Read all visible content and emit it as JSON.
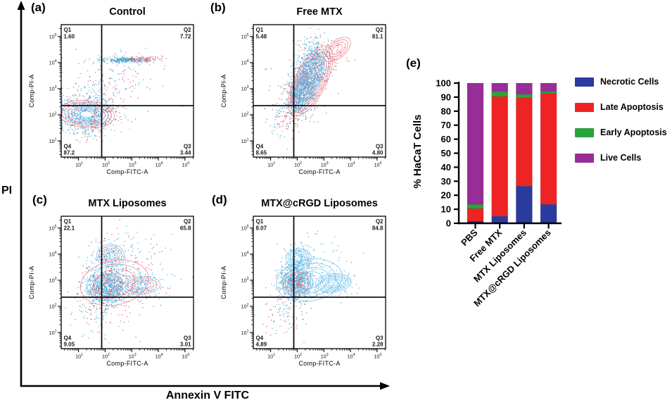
{
  "figure": {
    "pi_axis_label": "PI",
    "fitc_axis_label": "Annexin V FITC"
  },
  "panel_labels": [
    "(a)",
    "(b)",
    "(c)",
    "(d)",
    "(e)"
  ],
  "colors": {
    "scatter_blue": "#35a3dc",
    "scatter_red": "#e23b44",
    "contour_blue": "#6cc0e8",
    "contour_red": "#e87a87"
  },
  "chart_data": [
    {
      "type": "scatter",
      "panel": "(a)",
      "title": "Control",
      "axis": {
        "xlabel": "Comp-FITC-A",
        "ylabel": "Comp-PI-A",
        "xlog_range": [
          0.35,
          5.32
        ],
        "ylog_range": [
          0.38,
          5.45
        ],
        "decades": [
          1,
          2,
          3,
          4,
          5
        ]
      },
      "gate": {
        "x": 1.87,
        "y": 2.35
      },
      "quadrants": [
        {
          "id": "Q1",
          "value": "1.60",
          "pos": "tl"
        },
        {
          "id": "Q2",
          "value": "7.72",
          "pos": "tr"
        },
        {
          "id": "Q3",
          "value": "3.44",
          "pos": "br"
        },
        {
          "id": "Q4",
          "value": "87.2",
          "pos": "bl"
        }
      ],
      "contours": [
        {
          "cx": 1.3,
          "cy": 2.02,
          "rx": 1.05,
          "ry": 0.52,
          "rot": -5,
          "rings": 8,
          "colors": [
            "red",
            "red",
            "blue",
            "red",
            "blue",
            "blue",
            "blue",
            "blue"
          ],
          "inner_fill": "#ffffff"
        }
      ],
      "scatter": [
        {
          "cx": 1.3,
          "cy": 2.0,
          "sx": 0.55,
          "sy": 0.38,
          "n": 550,
          "col": "blue",
          "seed": 1
        },
        {
          "cx": 1.45,
          "cy": 2.05,
          "sx": 0.6,
          "sy": 0.42,
          "n": 200,
          "col": "red",
          "seed": 2
        },
        {
          "cx": 2.75,
          "cy": 4.1,
          "sx": 0.45,
          "sy": 0.05,
          "n": 260,
          "col": "blue",
          "seed": 3
        },
        {
          "cx": 3.35,
          "cy": 4.12,
          "sx": 0.4,
          "sy": 0.06,
          "n": 80,
          "col": "red",
          "seed": 4
        },
        {
          "cx": 1.9,
          "cy": 2.9,
          "sx": 0.6,
          "sy": 0.55,
          "n": 90,
          "col": "blue",
          "seed": 5
        },
        {
          "cx": 2.2,
          "cy": 3.1,
          "sx": 0.8,
          "sy": 0.8,
          "n": 70,
          "col": "red",
          "seed": 6
        },
        {
          "cx": 2.8,
          "cy": 3.7,
          "sx": 0.6,
          "sy": 0.4,
          "n": 40,
          "col": "blue",
          "seed": 7
        }
      ]
    },
    {
      "type": "scatter",
      "panel": "(b)",
      "title": "Free MTX",
      "axis": {
        "xlabel": "Comp-FITC-A",
        "ylabel": "Comp-PI-A",
        "xlog_range": [
          0.35,
          5.32
        ],
        "ylog_range": [
          0.38,
          5.45
        ],
        "decades": [
          1,
          2,
          3,
          4,
          5
        ]
      },
      "gate": {
        "x": 1.87,
        "y": 2.35
      },
      "quadrants": [
        {
          "id": "Q1",
          "value": "5.48",
          "pos": "tl"
        },
        {
          "id": "Q2",
          "value": "81.1",
          "pos": "tr"
        },
        {
          "id": "Q3",
          "value": "4.80",
          "pos": "br"
        },
        {
          "id": "Q4",
          "value": "8.65",
          "pos": "bl"
        }
      ],
      "contours": [
        {
          "cx": 2.5,
          "cy": 3.3,
          "rx": 1.45,
          "ry": 0.6,
          "rot": 63,
          "rings": 9,
          "colors": [
            "red"
          ]
        },
        {
          "cx": 3.5,
          "cy": 4.5,
          "rx": 0.6,
          "ry": 0.33,
          "rot": 40,
          "rings": 4,
          "colors": [
            "red"
          ]
        },
        {
          "cx": 2.4,
          "cy": 3.25,
          "rx": 1.1,
          "ry": 0.42,
          "rot": 63,
          "rings": 7,
          "colors": [
            "blue"
          ]
        }
      ],
      "scatter": [
        {
          "cx": 2.05,
          "cy": 2.6,
          "sx": 0.25,
          "sy": 0.35,
          "n": 420,
          "col": "blue",
          "seed": 11
        },
        {
          "cx": 2.35,
          "cy": 3.3,
          "sx": 0.25,
          "sy": 0.4,
          "n": 500,
          "col": "blue",
          "seed": 12
        },
        {
          "cx": 2.65,
          "cy": 4.1,
          "sx": 0.28,
          "sy": 0.45,
          "n": 420,
          "col": "blue",
          "seed": 13
        },
        {
          "cx": 2.2,
          "cy": 2.9,
          "sx": 0.5,
          "sy": 0.7,
          "n": 150,
          "col": "red",
          "seed": 14
        },
        {
          "cx": 3.1,
          "cy": 4.3,
          "sx": 0.45,
          "sy": 0.4,
          "n": 80,
          "col": "red",
          "seed": 15
        },
        {
          "cx": 1.55,
          "cy": 1.9,
          "sx": 0.35,
          "sy": 0.35,
          "n": 60,
          "col": "red",
          "seed": 16
        },
        {
          "cx": 1.4,
          "cy": 1.7,
          "sx": 0.3,
          "sy": 0.4,
          "n": 40,
          "col": "blue",
          "seed": 17
        }
      ]
    },
    {
      "type": "scatter",
      "panel": "(c)",
      "title": "MTX Liposomes",
      "axis": {
        "xlabel": "Comp-FITC-A",
        "ylabel": "Comp-PI-A",
        "xlog_range": [
          0.35,
          5.32
        ],
        "ylog_range": [
          0.38,
          5.45
        ],
        "decades": [
          1,
          2,
          3,
          4,
          5
        ]
      },
      "gate": {
        "x": 1.87,
        "y": 2.35
      },
      "quadrants": [
        {
          "id": "Q1",
          "value": "22.1",
          "pos": "tl"
        },
        {
          "id": "Q2",
          "value": "65.8",
          "pos": "tr"
        },
        {
          "id": "Q3",
          "value": "3.01",
          "pos": "br"
        },
        {
          "id": "Q4",
          "value": "9.05",
          "pos": "bl"
        }
      ],
      "contours": [
        {
          "cx": 2.35,
          "cy": 2.9,
          "rx": 1.3,
          "ry": 0.85,
          "rot": 12,
          "rings": 4,
          "colors": [
            "red",
            "blue"
          ]
        },
        {
          "cx": 2.05,
          "cy": 2.75,
          "rx": 0.62,
          "ry": 0.5,
          "rot": 18,
          "rings": 7,
          "colors": [
            "blue",
            "red",
            "blue"
          ]
        },
        {
          "cx": 2.2,
          "cy": 3.95,
          "rx": 0.52,
          "ry": 0.42,
          "rot": 0,
          "rings": 5,
          "colors": [
            "blue",
            "red"
          ]
        },
        {
          "cx": 3.35,
          "cy": 2.8,
          "rx": 0.72,
          "ry": 0.34,
          "rot": 4,
          "rings": 5,
          "colors": [
            "blue",
            "red"
          ]
        }
      ],
      "scatter": [
        {
          "cx": 2.05,
          "cy": 2.75,
          "sx": 0.38,
          "sy": 0.35,
          "n": 600,
          "col": "blue",
          "seed": 21
        },
        {
          "cx": 2.1,
          "cy": 2.8,
          "sx": 0.5,
          "sy": 0.5,
          "n": 150,
          "col": "red",
          "seed": 22
        },
        {
          "cx": 2.2,
          "cy": 3.95,
          "sx": 0.35,
          "sy": 0.3,
          "n": 130,
          "col": "blue",
          "seed": 23
        },
        {
          "cx": 3.35,
          "cy": 2.8,
          "sx": 0.5,
          "sy": 0.25,
          "n": 110,
          "col": "blue",
          "seed": 24
        },
        {
          "cx": 3.3,
          "cy": 2.9,
          "sx": 0.6,
          "sy": 0.45,
          "n": 60,
          "col": "red",
          "seed": 25
        },
        {
          "cx": 1.7,
          "cy": 1.8,
          "sx": 0.45,
          "sy": 0.5,
          "n": 70,
          "col": "blue",
          "seed": 26
        },
        {
          "cx": 2.0,
          "cy": 1.9,
          "sx": 0.7,
          "sy": 0.6,
          "n": 50,
          "col": "red",
          "seed": 27
        },
        {
          "cx": 2.8,
          "cy": 3.6,
          "sx": 0.9,
          "sy": 0.8,
          "n": 60,
          "col": "red",
          "seed": 28
        },
        {
          "cx": 2.9,
          "cy": 4.3,
          "sx": 0.8,
          "sy": 0.4,
          "n": 40,
          "col": "blue",
          "seed": 29
        }
      ]
    },
    {
      "type": "scatter",
      "panel": "(d)",
      "title": "MTX@cRGD Liposomes",
      "axis": {
        "xlabel": "Comp-FITC-A",
        "ylabel": "Comp-PI-A",
        "xlog_range": [
          0.35,
          5.32
        ],
        "ylog_range": [
          0.38,
          5.45
        ],
        "decades": [
          1,
          2,
          3,
          4,
          5
        ]
      },
      "gate": {
        "x": 1.87,
        "y": 2.35
      },
      "quadrants": [
        {
          "id": "Q1",
          "value": "8.07",
          "pos": "tl"
        },
        {
          "id": "Q2",
          "value": "84.8",
          "pos": "tr"
        },
        {
          "id": "Q3",
          "value": "2.28",
          "pos": "br"
        },
        {
          "id": "Q4",
          "value": "4.89",
          "pos": "bl"
        }
      ],
      "contours": [
        {
          "cx": 2.45,
          "cy": 3.0,
          "rx": 1.25,
          "ry": 0.8,
          "rot": 10,
          "rings": 4,
          "colors": [
            "blue"
          ]
        },
        {
          "cx": 2.0,
          "cy": 2.9,
          "rx": 0.58,
          "ry": 0.52,
          "rot": 15,
          "rings": 8,
          "colors": [
            "blue",
            "blue",
            "red",
            "blue"
          ]
        },
        {
          "cx": 2.05,
          "cy": 3.85,
          "rx": 0.48,
          "ry": 0.35,
          "rot": 0,
          "rings": 5,
          "colors": [
            "blue"
          ]
        },
        {
          "cx": 3.35,
          "cy": 2.9,
          "rx": 0.68,
          "ry": 0.36,
          "rot": 5,
          "rings": 6,
          "colors": [
            "blue"
          ]
        }
      ],
      "scatter": [
        {
          "cx": 2.0,
          "cy": 2.95,
          "sx": 0.35,
          "sy": 0.35,
          "n": 600,
          "col": "blue",
          "seed": 31
        },
        {
          "cx": 2.0,
          "cy": 2.9,
          "sx": 0.25,
          "sy": 0.3,
          "n": 120,
          "col": "red",
          "seed": 32
        },
        {
          "cx": 2.05,
          "cy": 3.85,
          "sx": 0.3,
          "sy": 0.28,
          "n": 120,
          "col": "blue",
          "seed": 33
        },
        {
          "cx": 3.35,
          "cy": 2.9,
          "sx": 0.45,
          "sy": 0.25,
          "n": 90,
          "col": "blue",
          "seed": 34
        },
        {
          "cx": 1.55,
          "cy": 1.9,
          "sx": 0.4,
          "sy": 0.5,
          "n": 60,
          "col": "blue",
          "seed": 35
        },
        {
          "cx": 1.6,
          "cy": 1.8,
          "sx": 0.5,
          "sy": 0.5,
          "n": 50,
          "col": "red",
          "seed": 36
        },
        {
          "cx": 2.9,
          "cy": 3.9,
          "sx": 0.7,
          "sy": 0.5,
          "n": 40,
          "col": "blue",
          "seed": 37
        }
      ]
    },
    {
      "type": "bar",
      "panel": "(e)",
      "stacked": true,
      "ylabel": "% HaCaT Cells",
      "ylim": [
        0,
        100
      ],
      "ytick_step": 10,
      "categories": [
        "PBS",
        "Free MTX",
        "MTX Liposomes",
        "MTX@cRGD Liposomes"
      ],
      "series": [
        {
          "name": "Necrotic Cells",
          "color": "#2b3a9e",
          "values": [
            1.5,
            5.0,
            26.5,
            13.5
          ]
        },
        {
          "name": "Late Apoptosis",
          "color": "#ee2424",
          "values": [
            9.0,
            85.5,
            63.0,
            79.0
          ]
        },
        {
          "name": "Early Apoptosis",
          "color": "#2ba23c",
          "values": [
            3.0,
            3.5,
            2.5,
            1.5
          ]
        },
        {
          "name": "Live Cells",
          "color": "#982d98",
          "values": [
            86.5,
            6.0,
            8.0,
            6.0
          ]
        }
      ],
      "legend_position": "right"
    }
  ]
}
